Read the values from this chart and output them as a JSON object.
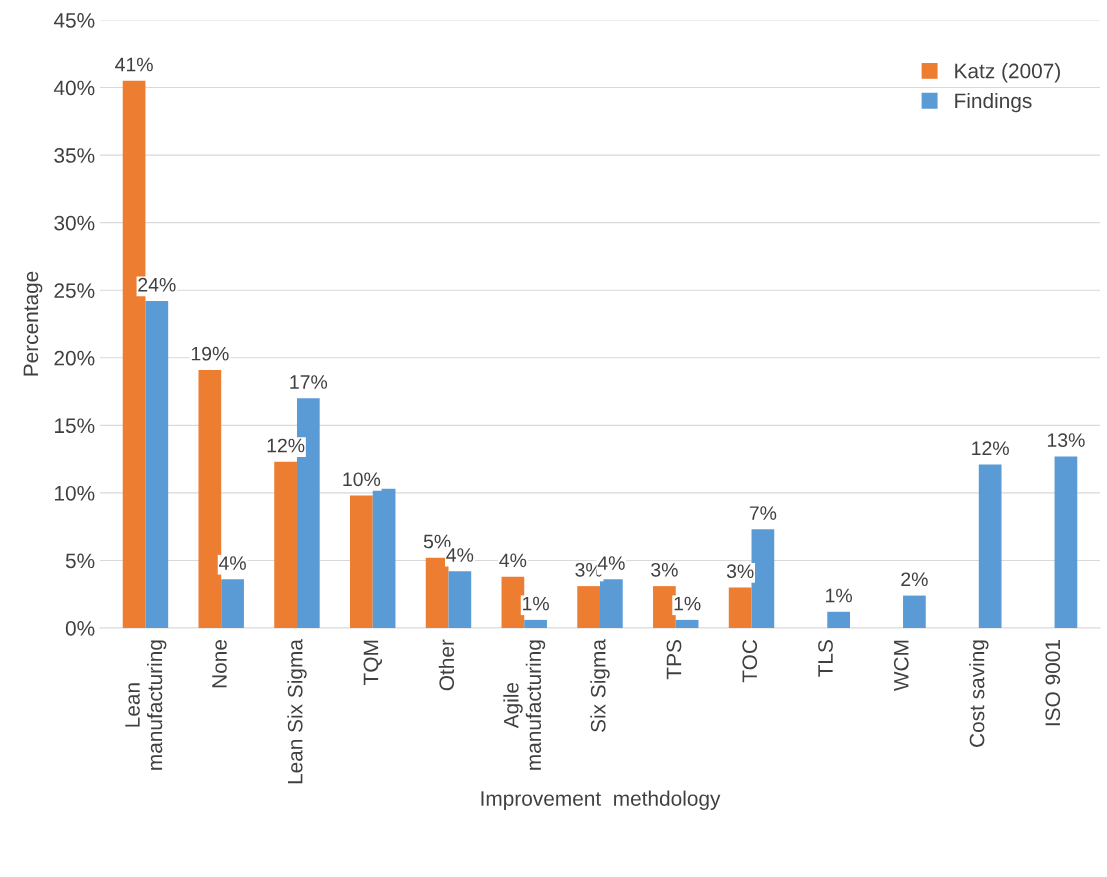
{
  "chart_data": {
    "type": "bar",
    "xlabel": "Improvement  methdology",
    "ylabel": "Percentage",
    "categories": [
      "Lean\nmanufacturing",
      "None",
      "Lean Six Sigma",
      "TQM",
      "Other",
      "Agile\nmanufacturing",
      "Six Sigma",
      "TPS",
      "TOC",
      "TLS",
      "WCM",
      "Cost saving",
      "ISO 9001"
    ],
    "series": [
      {
        "name": "Katz (2007)",
        "color": "#ed7d31",
        "values": [
          40.5,
          19.1,
          12.3,
          9.8,
          5.2,
          3.8,
          3.1,
          3.1,
          3.0,
          null,
          null,
          null,
          null
        ],
        "value_labels": [
          "41%",
          "19%",
          "12%",
          "10%",
          "5%",
          "4%",
          "3%",
          "3%",
          "3%",
          null,
          null,
          null,
          null
        ]
      },
      {
        "name": "Findings",
        "color": "#5b9bd5",
        "values": [
          24.2,
          3.6,
          17.0,
          10.3,
          4.2,
          0.6,
          3.6,
          0.6,
          7.3,
          1.2,
          2.4,
          12.1,
          12.7
        ],
        "value_labels": [
          "24%",
          "4%",
          "17%",
          null,
          "4%",
          "1%",
          "4%",
          "1%",
          "7%",
          "1%",
          "2%",
          "12%",
          "13%"
        ]
      }
    ],
    "ylim": [
      0,
      45
    ],
    "yticks": [
      {
        "value": 0,
        "label": "0%"
      },
      {
        "value": 5,
        "label": "5%"
      },
      {
        "value": 10,
        "label": "10%"
      },
      {
        "value": 15,
        "label": "15%"
      },
      {
        "value": 20,
        "label": "20%"
      },
      {
        "value": 25,
        "label": "25%"
      },
      {
        "value": 30,
        "label": "30%"
      },
      {
        "value": 35,
        "label": "35%"
      },
      {
        "value": 40,
        "label": "40%"
      },
      {
        "value": 45,
        "label": "45%"
      }
    ],
    "grid": "y",
    "legend": "top right"
  }
}
